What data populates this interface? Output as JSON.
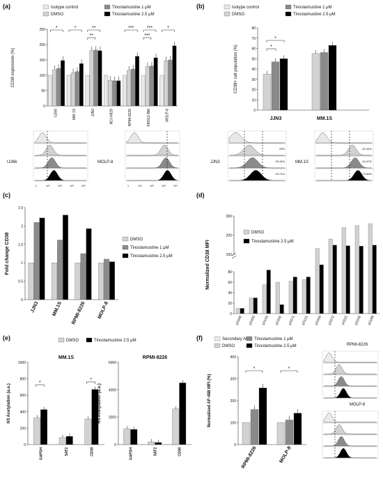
{
  "colors": {
    "isotype": "#e8e8e8",
    "dmso": "#d2d2d2",
    "tino1": "#8a8a8a",
    "tino25": "#000000",
    "secondary": "#ececec"
  },
  "chart_data": [
    {
      "panel": "(a)",
      "type": "bar",
      "legend": [
        "Isotype control",
        "DMSO",
        "Tinostamustine 1 μM",
        "Tinostamustine 2.5 μM"
      ],
      "ylabel": "CD38 expression (%)",
      "ylim": [
        0,
        250
      ],
      "yticks": [
        0,
        50,
        100,
        150,
        200,
        250
      ],
      "categories": [
        "U266",
        "MM.1S",
        "JJN3",
        "NCI-H929",
        "RPMI-8226",
        "KMS12-BM",
        "MOLP-8"
      ],
      "series": [
        {
          "name": "Isotype control",
          "values": [
            100,
            100,
            100,
            100,
            100,
            100,
            100
          ]
        },
        {
          "name": "DMSO",
          "values": [
            118,
            108,
            180,
            83,
            116,
            128,
            147
          ]
        },
        {
          "name": "Tinostamustine 1 μM",
          "values": [
            122,
            112,
            182,
            82,
            120,
            130,
            150
          ]
        },
        {
          "name": "Tinostamustine 2.5 μM",
          "values": [
            148,
            138,
            180,
            82,
            162,
            157,
            196
          ]
        }
      ],
      "significance": [
        "*",
        "*",
        "**",
        "**",
        "***",
        "***",
        "***",
        "*"
      ],
      "histogram_labels": [
        "U266",
        "MOLP-8"
      ],
      "histogram_axis_ticks": [
        "1",
        "10¹",
        "10²",
        "10³",
        "10⁴"
      ]
    },
    {
      "panel": "(b)",
      "type": "bar",
      "legend": [
        "Isotype control",
        "DMSO",
        "Tinostamustine 1 μM",
        "Tinostamustine 2.5 μM"
      ],
      "ylabel": "CD38+ cell population (%)",
      "ylim": [
        0,
        80
      ],
      "yticks": [
        0,
        10,
        20,
        30,
        40,
        50,
        60,
        70,
        80
      ],
      "categories": [
        "JJN3",
        "MM.1S"
      ],
      "series": [
        {
          "name": "DMSO",
          "values": [
            35,
            55
          ]
        },
        {
          "name": "Tinostamustine 1 μM",
          "values": [
            47,
            56
          ]
        },
        {
          "name": "Tinostamustine 2.5 μM",
          "values": [
            50,
            63
          ]
        }
      ],
      "significance": [
        "*",
        "*"
      ],
      "histogram_labels": [
        "JJN3",
        "MM.1S"
      ],
      "histogram_pcts": {
        "JJN3": [
          "25%",
          "36.34%",
          "33.71%"
        ],
        "MM.1S": [
          "62.34%",
          "64.47%",
          "73.89%"
        ]
      }
    },
    {
      "panel": "(c)",
      "type": "bar",
      "ylabel": "Fold change CD38",
      "ylim": [
        0,
        2.5
      ],
      "yticks": [
        "0",
        "0.5",
        "1",
        "1.5",
        "2",
        "2.5"
      ],
      "categories": [
        "JJN3",
        "MM.1S",
        "RPMI-8226",
        "MOLP-8"
      ],
      "series": [
        {
          "name": "DMSO",
          "values": [
            1.0,
            1.0,
            1.0,
            1.0
          ]
        },
        {
          "name": "Tinostamustine 1 μM",
          "values": [
            2.1,
            1.62,
            1.25,
            1.1
          ]
        },
        {
          "name": "Tinostamustine 2.5 μM",
          "values": [
            2.22,
            2.3,
            1.93,
            1.03
          ]
        }
      ]
    },
    {
      "panel": "(d)",
      "type": "bar",
      "ylabel": "Normalized CD38 MFI",
      "yticks": [
        "0",
        "20",
        "40",
        "60",
        "80",
        "100",
        "200",
        "300"
      ],
      "categories": [
        "p2048",
        "p2400",
        "p2134",
        "p2316",
        "p2071",
        "p2121",
        "p2049",
        "p2072",
        "p2115",
        "p2249",
        "p2188"
      ],
      "series": [
        {
          "name": "DMSO",
          "values": [
            10,
            30,
            55,
            60,
            62,
            65,
            130,
            180,
            240,
            250,
            260
          ]
        },
        {
          "name": "Tinostamustine 2.5 μM",
          "values": [
            10,
            30,
            82,
            17,
            70,
            70,
            88,
            148,
            145,
            143,
            148
          ]
        }
      ]
    },
    {
      "panel": "(e)",
      "type": "bar",
      "legend": [
        "DMSO",
        "Tinostamustine 2.5 μM"
      ],
      "subcharts": [
        {
          "title": "MM.1S",
          "ylabel": "H3 Acetylation (a.u.)",
          "ylim": [
            0,
            1000
          ],
          "yticks": [
            "0",
            "200",
            "400",
            "600",
            "800",
            "1000"
          ],
          "categories": [
            "GAPDH",
            "SAT2",
            "CD38"
          ],
          "series": [
            {
              "name": "DMSO",
              "values": [
                325,
                85,
                310
              ]
            },
            {
              "name": "Tinostamustine 2.5 μM",
              "values": [
                425,
                100,
                670
              ]
            }
          ],
          "significance": [
            "*",
            "*"
          ]
        },
        {
          "title": "RPMI-8226",
          "ylabel": "H3 Acetylation (a.u.)",
          "ylim": [
            0,
            6000
          ],
          "yticks": [
            "0",
            "2000",
            "4000",
            "6000"
          ],
          "categories": [
            "GAPDH",
            "SAT2",
            "CD38"
          ],
          "series": [
            {
              "name": "DMSO",
              "values": [
                1150,
                200,
                2600
              ]
            },
            {
              "name": "Tinostamustine 2.5 μM",
              "values": [
                1100,
                150,
                4500
              ]
            }
          ]
        }
      ]
    },
    {
      "panel": "(f)",
      "type": "bar",
      "legend": [
        "Secondary Ab",
        "Tinostamustine 1 μM",
        "DMSO",
        "Tinostamustine 2.5 μM"
      ],
      "ylabel": "Normalized AF-488 MFI (%)",
      "ylim": [
        0,
        400
      ],
      "yticks": [
        "0",
        "100",
        "200",
        "300",
        "400"
      ],
      "categories": [
        "RPMI-8226",
        "MOLP-8"
      ],
      "series": [
        {
          "name": "DMSO",
          "values": [
            100,
            100
          ]
        },
        {
          "name": "Tinostamustine 1 μM",
          "values": [
            160,
            112
          ]
        },
        {
          "name": "Tinostamustine 2.5 μM",
          "values": [
            258,
            143
          ]
        }
      ],
      "significance": [
        "*",
        "*"
      ],
      "histogram_labels": [
        "RPMI-8226",
        "MOLP-8"
      ]
    }
  ]
}
